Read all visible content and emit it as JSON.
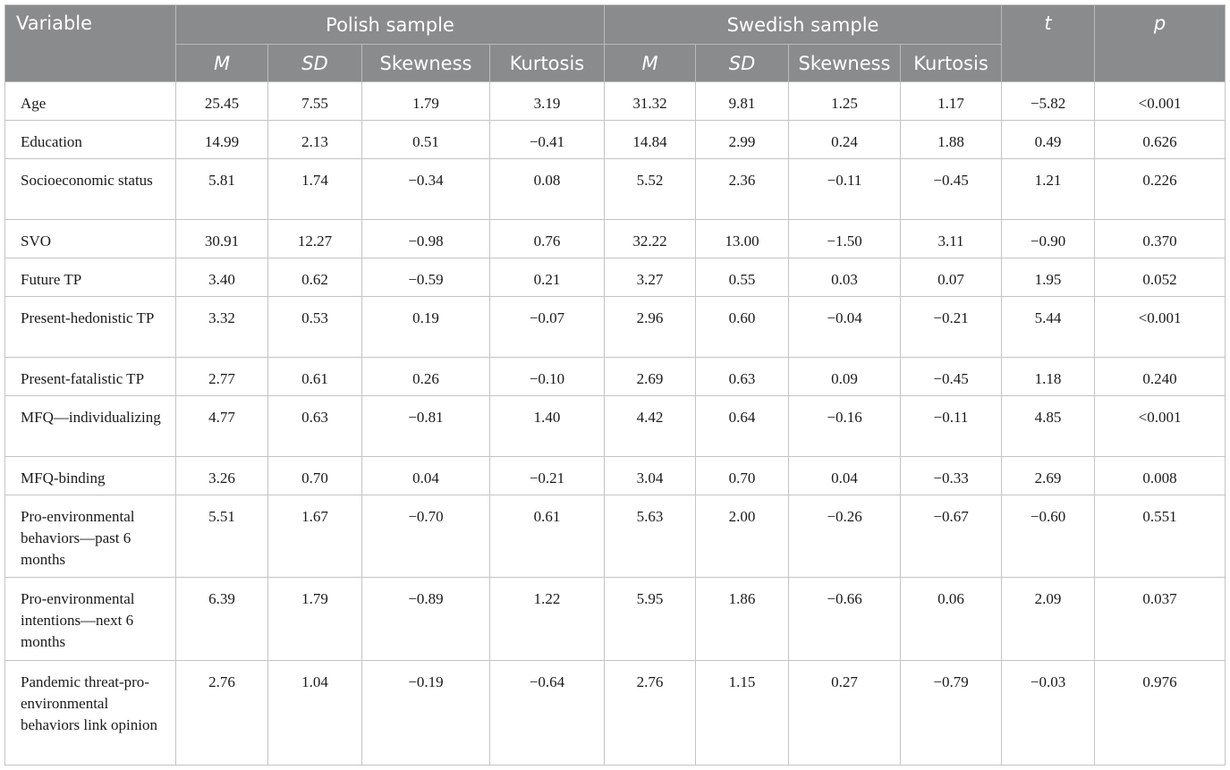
{
  "header": {
    "variable": "Variable",
    "groups": [
      "Polish sample",
      "Swedish sample"
    ],
    "t": "t",
    "p": "p",
    "sub": [
      "M",
      "SD",
      "Skewness",
      "Kurtosis",
      "M",
      "SD",
      "Skewness",
      "Kurtosis"
    ]
  },
  "rows": [
    {
      "label": "Age",
      "cells": [
        "25.45",
        "7.55",
        "1.79",
        "3.19",
        "31.32",
        "9.81",
        "1.25",
        "1.17",
        "−5.82",
        "<0.001"
      ]
    },
    {
      "label": "Education",
      "cells": [
        "14.99",
        "2.13",
        "0.51",
        "−0.41",
        "14.84",
        "2.99",
        "0.24",
        "1.88",
        "0.49",
        "0.626"
      ]
    },
    {
      "label": "Socioeconomic status",
      "cells": [
        "5.81",
        "1.74",
        "−0.34",
        "0.08",
        "5.52",
        "2.36",
        "−0.11",
        "−0.45",
        "1.21",
        "0.226"
      ]
    },
    {
      "label": "SVO",
      "cells": [
        "30.91",
        "12.27",
        "−0.98",
        "0.76",
        "32.22",
        "13.00",
        "−1.50",
        "3.11",
        "−0.90",
        "0.370"
      ]
    },
    {
      "label": "Future TP",
      "cells": [
        "3.40",
        "0.62",
        "−0.59",
        "0.21",
        "3.27",
        "0.55",
        "0.03",
        "0.07",
        "1.95",
        "0.052"
      ]
    },
    {
      "label": "Present-hedonistic TP",
      "cells": [
        "3.32",
        "0.53",
        "0.19",
        "−0.07",
        "2.96",
        "0.60",
        "−0.04",
        "−0.21",
        "5.44",
        "<0.001"
      ]
    },
    {
      "label": "Present-fatalistic TP",
      "cells": [
        "2.77",
        "0.61",
        "0.26",
        "−0.10",
        "2.69",
        "0.63",
        "0.09",
        "−0.45",
        "1.18",
        "0.240"
      ]
    },
    {
      "label": "MFQ—individualizing",
      "cells": [
        "4.77",
        "0.63",
        "−0.81",
        "1.40",
        "4.42",
        "0.64",
        "−0.16",
        "−0.11",
        "4.85",
        "<0.001"
      ]
    },
    {
      "label": "MFQ-binding",
      "cells": [
        "3.26",
        "0.70",
        "0.04",
        "−0.21",
        "3.04",
        "0.70",
        "0.04",
        "−0.33",
        "2.69",
        "0.008"
      ]
    },
    {
      "label": "Pro-environmental behaviors—past 6 months",
      "cells": [
        "5.51",
        "1.67",
        "−0.70",
        "0.61",
        "5.63",
        "2.00",
        "−0.26",
        "−0.67",
        "−0.60",
        "0.551"
      ]
    },
    {
      "label": "Pro-environmental intentions—next 6 months",
      "cells": [
        "6.39",
        "1.79",
        "−0.89",
        "1.22",
        "5.95",
        "1.86",
        "−0.66",
        "0.06",
        "2.09",
        "0.037"
      ]
    },
    {
      "label": "Pandemic threat-pro-environmental behaviors link opinion",
      "cells": [
        "2.76",
        "1.04",
        "−0.19",
        "−0.64",
        "2.76",
        "1.15",
        "0.27",
        "−0.79",
        "−0.03",
        "0.976"
      ]
    }
  ]
}
